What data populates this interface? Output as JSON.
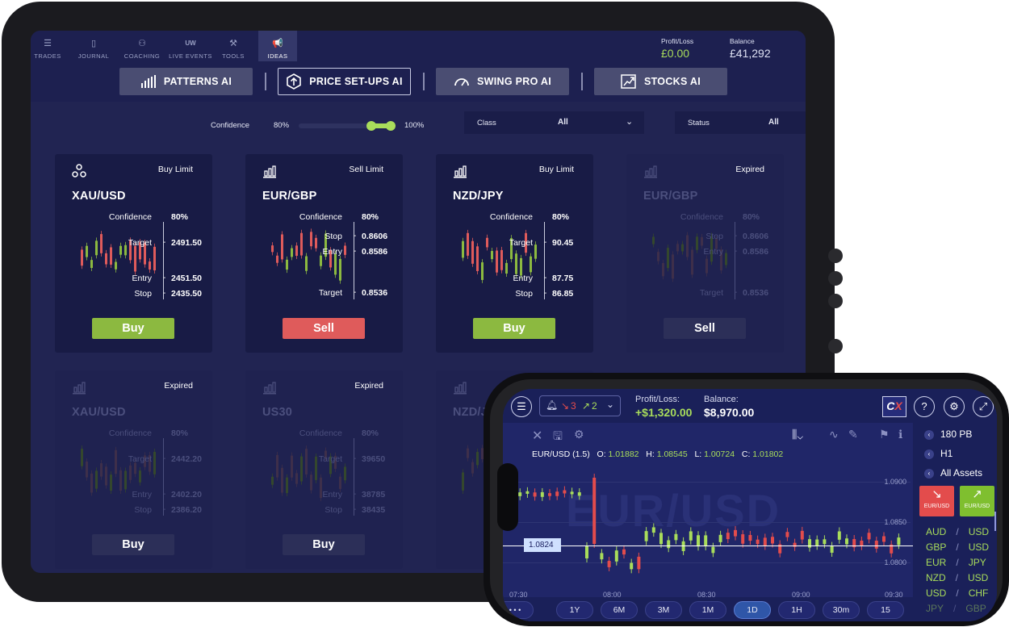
{
  "tablet": {
    "nav": [
      {
        "label": "TRADES",
        "icon": "list-icon"
      },
      {
        "label": "JOURNAL",
        "icon": "book-icon"
      },
      {
        "label": "COACHING",
        "icon": "people-icon"
      },
      {
        "label": "LIVE EVENTS",
        "icon": "uw-icon",
        "icon_text": "UW"
      },
      {
        "label": "TOOLS",
        "icon": "tools-icon"
      },
      {
        "label": "IDEAS",
        "icon": "megaphone-icon",
        "active": true
      }
    ],
    "profit_loss": {
      "label": "Profit/Loss",
      "value": "£0.00"
    },
    "balance": {
      "label": "Balance",
      "value": "£41,292"
    },
    "ai_tabs": [
      {
        "label": "PATTERNS AI",
        "icon": "bars-icon"
      },
      {
        "label": "PRICE SET-UPS AI",
        "icon": "up-arrow-hex-icon",
        "active": true
      },
      {
        "label": "SWING PRO AI",
        "icon": "gauge-icon"
      },
      {
        "label": "STOCKS AI",
        "icon": "stock-chart-icon"
      }
    ],
    "filters": {
      "confidence_label": "Confidence",
      "confidence_min": "80%",
      "confidence_max": "100%",
      "class_label": "Class",
      "class_value": "All",
      "status_label": "Status",
      "status_value": "All"
    },
    "cards": [
      {
        "pair": "XAU/USD",
        "order_type": "Buy Limit",
        "confidence_label": "Confidence",
        "confidence": "80%",
        "rows": [
          {
            "k": "Target",
            "v": "2491.50"
          },
          {
            "k": "Entry",
            "v": "2451.50"
          },
          {
            "k": "Stop",
            "v": "2435.50"
          }
        ],
        "action": "Buy"
      },
      {
        "pair": "EUR/GBP",
        "order_type": "Sell Limit",
        "confidence_label": "Confidence",
        "confidence": "80%",
        "rows": [
          {
            "k": "Stop",
            "v": "0.8606"
          },
          {
            "k": "Entry",
            "v": "0.8586"
          },
          {
            "k": "Target",
            "v": "0.8536"
          }
        ],
        "action": "Sell"
      },
      {
        "pair": "NZD/JPY",
        "order_type": "Buy Limit",
        "confidence_label": "Confidence",
        "confidence": "80%",
        "rows": [
          {
            "k": "Target",
            "v": "90.45"
          },
          {
            "k": "Entry",
            "v": "87.75"
          },
          {
            "k": "Stop",
            "v": "86.85"
          }
        ],
        "action": "Buy"
      },
      {
        "pair": "EUR/GBP",
        "order_type": "Expired",
        "confidence_label": "Confidence",
        "confidence": "80%",
        "rows": [
          {
            "k": "Stop",
            "v": "0.8606"
          },
          {
            "k": "Entry",
            "v": "0.8586"
          },
          {
            "k": "Target",
            "v": "0.8536"
          }
        ],
        "action": "Sell"
      },
      {
        "pair": "XAU/USD",
        "order_type": "Expired",
        "confidence_label": "Confidence",
        "confidence": "80%",
        "rows": [
          {
            "k": "Target",
            "v": "2442.20"
          },
          {
            "k": "Entry",
            "v": "2402.20"
          },
          {
            "k": "Stop",
            "v": "2386.20"
          }
        ],
        "action": "Buy"
      },
      {
        "pair": "US30",
        "order_type": "Expired",
        "confidence_label": "Confidence",
        "confidence": "80%",
        "rows": [
          {
            "k": "Target",
            "v": "39650"
          },
          {
            "k": "Entry",
            "v": "38785"
          },
          {
            "k": "Stop",
            "v": "38435"
          }
        ],
        "action": "Buy"
      },
      {
        "pair": "NZD/JPY",
        "order_type": "",
        "confidence_label": "",
        "confidence": "",
        "rows": [],
        "action": ""
      }
    ]
  },
  "phone": {
    "alerts_down": "3",
    "alerts_up": "2",
    "profit_loss_label": "Profit/Loss:",
    "profit_loss_value": "+$1,320.00",
    "balance_label": "Balance:",
    "balance_value": "$8,970.00",
    "logo_text": "C",
    "logo_accent": "X",
    "ohlc": {
      "symbol": "EUR/USD (1.5)",
      "o_label": "O:",
      "o": "1.01882",
      "h_label": "H:",
      "h": "1.08545",
      "l_label": "L:",
      "l": "1.00724",
      "c_label": "C:",
      "c": "1.01802"
    },
    "watermark": "EUR/USD",
    "current_price": "1.0824",
    "price_axis": [
      "1.0900",
      "1.0850",
      "1.0800"
    ],
    "time_axis": [
      "07:30",
      "08:00",
      "08:30",
      "09:00",
      "09:30"
    ],
    "timeframes": [
      "1Y",
      "6M",
      "3M",
      "1M",
      "1D",
      "1H",
      "30m",
      "15"
    ],
    "active_timeframe": "1D",
    "more_label": "• • •",
    "side": {
      "line1": "180 PB",
      "line2": "H1",
      "line3": "All Assets"
    },
    "sell_label": "EUR/USD",
    "buy_label": "EUR/USD",
    "assets": [
      {
        "base": "AUD",
        "quote": "USD"
      },
      {
        "base": "GBP",
        "quote": "USD"
      },
      {
        "base": "EUR",
        "quote": "JPY"
      },
      {
        "base": "NZD",
        "quote": "USD"
      },
      {
        "base": "USD",
        "quote": "CHF"
      },
      {
        "base": "JPY",
        "quote": "GBP"
      }
    ],
    "colors": {
      "up": "#a9dd5b",
      "down": "#e34c4c",
      "accent": "#262c7a"
    }
  }
}
